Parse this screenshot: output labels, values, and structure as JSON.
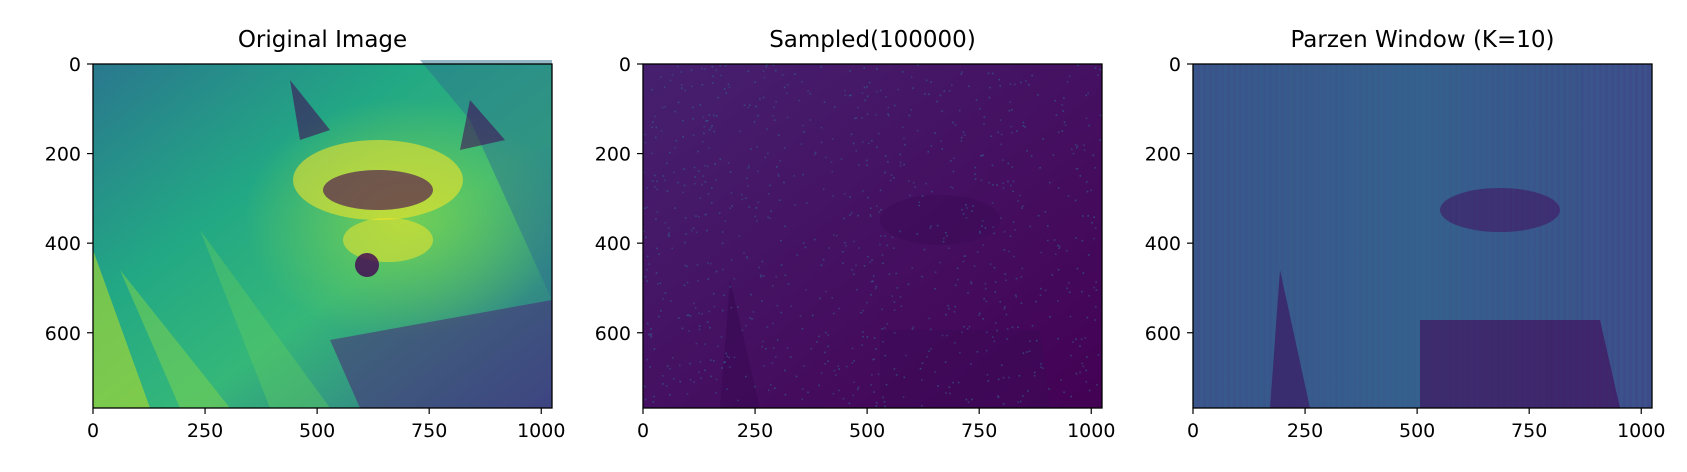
{
  "chart_data": [
    {
      "type": "heatmap",
      "title": "Original Image",
      "colormap": "viridis",
      "image_size": [
        1024,
        768
      ],
      "xlim": [
        0,
        1024
      ],
      "ylim": [
        768,
        0
      ],
      "xticks": [
        0,
        250,
        500,
        750,
        1000
      ],
      "yticks": [
        0,
        200,
        400,
        600
      ],
      "xtick_labels": [
        "0",
        "250",
        "500",
        "750",
        "1000"
      ],
      "ytick_labels": [
        "0",
        "200",
        "400",
        "600"
      ],
      "content": "bright-grayscale-image",
      "xlabel": "",
      "ylabel": ""
    },
    {
      "type": "heatmap",
      "title": "Sampled(100000)",
      "colormap": "viridis",
      "image_size": [
        1024,
        768
      ],
      "xlim": [
        0,
        1024
      ],
      "ylim": [
        768,
        0
      ],
      "xticks": [
        0,
        250,
        500,
        750,
        1000
      ],
      "yticks": [
        0,
        200,
        400,
        600
      ],
      "xtick_labels": [
        "0",
        "250",
        "500",
        "750",
        "1000"
      ],
      "ytick_labels": [
        "0",
        "200",
        "400",
        "600"
      ],
      "content": "sparse-dark-noise",
      "xlabel": "",
      "ylabel": ""
    },
    {
      "type": "heatmap",
      "title": "Parzen Window (K=10)",
      "colormap": "viridis",
      "image_size": [
        1024,
        768
      ],
      "xlim": [
        0,
        1024
      ],
      "ylim": [
        768,
        0
      ],
      "xticks": [
        0,
        250,
        500,
        750,
        1000
      ],
      "yticks": [
        0,
        200,
        400,
        600
      ],
      "xtick_labels": [
        "0",
        "250",
        "500",
        "750",
        "1000"
      ],
      "ytick_labels": [
        "0",
        "200",
        "400",
        "600"
      ],
      "content": "smoothed-dark-streaks",
      "xlabel": "",
      "ylabel": ""
    }
  ],
  "colors": {
    "viridis_dark": "#440154",
    "viridis_blue": "#3b528b",
    "viridis_teal": "#21918c",
    "viridis_green": "#5ec962",
    "viridis_yellow": "#fde725",
    "axis": "#000000"
  }
}
